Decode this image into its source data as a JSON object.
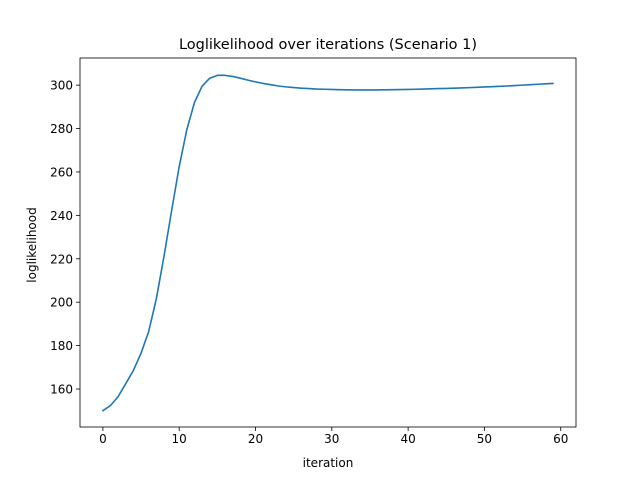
{
  "chart_data": {
    "type": "line",
    "title": "Loglikelihood over iterations (Scenario 1)",
    "xlabel": "iteration",
    "ylabel": "loglikelihood",
    "xlim": [
      -3,
      62
    ],
    "ylim": [
      142.5,
      312.5
    ],
    "xticks": [
      0,
      10,
      20,
      30,
      40,
      50,
      60
    ],
    "yticks": [
      160,
      180,
      200,
      220,
      240,
      260,
      280,
      300
    ],
    "grid": false,
    "legend": "none",
    "line_color": "#1f77b4",
    "series": [
      {
        "x": [
          0,
          1,
          2,
          3,
          4,
          5,
          6,
          7,
          8,
          9,
          10,
          11,
          12,
          13,
          14,
          15,
          16,
          17,
          18,
          19,
          20,
          21,
          22,
          23,
          24,
          25,
          26,
          27,
          28,
          29,
          30,
          31,
          32,
          33,
          34,
          35,
          36,
          37,
          38,
          39,
          40,
          41,
          42,
          43,
          44,
          45,
          46,
          47,
          48,
          49,
          50,
          51,
          52,
          53,
          54,
          55,
          56,
          57,
          58,
          59
        ],
        "values": [
          150,
          152.4,
          156.5,
          162.5,
          168.6,
          176.5,
          186.5,
          201.5,
          221,
          242,
          262.5,
          279.5,
          292,
          299.5,
          303.2,
          304.5,
          304.5,
          304,
          303.2,
          302.3,
          301.5,
          300.8,
          300.2,
          299.6,
          299.2,
          298.9,
          298.6,
          298.4,
          298.2,
          298.1,
          298.0,
          297.9,
          297.85,
          297.8,
          297.8,
          297.8,
          297.8,
          297.85,
          297.9,
          297.95,
          298.0,
          298.1,
          298.2,
          298.3,
          298.4,
          298.5,
          298.6,
          298.7,
          298.85,
          299.0,
          299.15,
          299.3,
          299.45,
          299.6,
          299.8,
          300.0,
          300.2,
          300.4,
          300.6,
          300.8
        ]
      }
    ]
  }
}
